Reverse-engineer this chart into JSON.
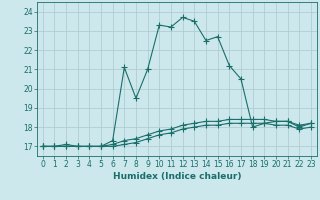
{
  "xlabel": "Humidex (Indice chaleur)",
  "ylabel": "",
  "xlim": [
    -0.5,
    23.5
  ],
  "ylim": [
    16.5,
    24.5
  ],
  "yticks": [
    17,
    18,
    19,
    20,
    21,
    22,
    23,
    24
  ],
  "xticks": [
    0,
    1,
    2,
    3,
    4,
    5,
    6,
    7,
    8,
    9,
    10,
    11,
    12,
    13,
    14,
    15,
    16,
    17,
    18,
    19,
    20,
    21,
    22,
    23
  ],
  "bg_color": "#cce8ec",
  "line_color": "#1a6e6a",
  "grid_color": "#adc8cc",
  "line1_x": [
    0,
    1,
    2,
    3,
    4,
    5,
    6,
    7,
    8,
    9,
    10,
    11,
    12,
    13,
    14,
    15,
    16,
    17,
    18,
    19,
    20,
    21,
    22,
    23
  ],
  "line1_y": [
    17.0,
    17.0,
    17.1,
    17.0,
    17.0,
    17.0,
    17.3,
    21.1,
    19.5,
    21.0,
    23.3,
    23.2,
    23.7,
    23.5,
    22.5,
    22.7,
    21.2,
    20.5,
    18.0,
    18.2,
    18.3,
    18.3,
    18.0,
    18.2
  ],
  "line2_x": [
    0,
    1,
    2,
    3,
    4,
    5,
    6,
    7,
    8,
    9,
    10,
    11,
    12,
    13,
    14,
    15,
    16,
    17,
    18,
    19,
    20,
    21,
    22,
    23
  ],
  "line2_y": [
    17.0,
    17.0,
    17.0,
    17.0,
    17.0,
    17.0,
    17.1,
    17.3,
    17.4,
    17.6,
    17.8,
    17.9,
    18.1,
    18.2,
    18.3,
    18.3,
    18.4,
    18.4,
    18.4,
    18.4,
    18.3,
    18.3,
    18.1,
    18.2
  ],
  "line3_x": [
    0,
    1,
    2,
    3,
    4,
    5,
    6,
    7,
    8,
    9,
    10,
    11,
    12,
    13,
    14,
    15,
    16,
    17,
    18,
    19,
    20,
    21,
    22,
    23
  ],
  "line3_y": [
    17.0,
    17.0,
    17.0,
    17.0,
    17.0,
    17.0,
    17.0,
    17.1,
    17.2,
    17.4,
    17.6,
    17.7,
    17.9,
    18.0,
    18.1,
    18.1,
    18.2,
    18.2,
    18.2,
    18.2,
    18.1,
    18.1,
    17.9,
    18.0
  ]
}
